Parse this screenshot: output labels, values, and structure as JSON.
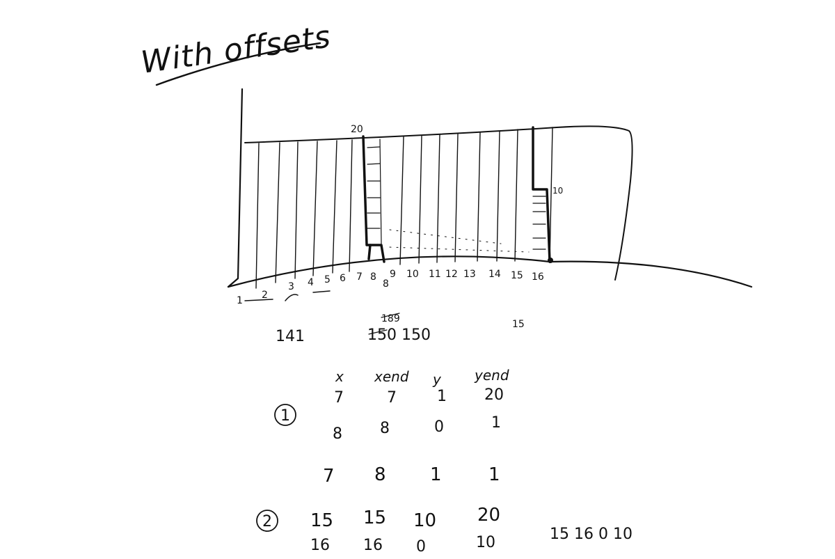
{
  "title": "With offsets",
  "top_marker": "20",
  "right_marker": "10",
  "axis_numbers": [
    "1",
    "2",
    "3",
    "4",
    "5",
    "6",
    "7",
    "8",
    "9",
    "10",
    "11",
    "12",
    "13",
    "14",
    "15",
    "16"
  ],
  "below_axis_8": "8",
  "notes": {
    "left": "141",
    "mid_top": "189",
    "mid_bottom": "150 150",
    "right": "15"
  },
  "table": {
    "headers": [
      "x",
      "xend",
      "y",
      "yend"
    ],
    "group1_label": "1",
    "group2_label": "2",
    "rows": [
      [
        "7",
        "7",
        "1",
        "20"
      ],
      [
        "8",
        "8",
        "0",
        "1"
      ],
      [
        "7",
        "8",
        "1",
        "1"
      ],
      [
        "15",
        "15",
        "10",
        "20"
      ],
      [
        "16",
        "16",
        "0",
        "10"
      ]
    ]
  },
  "side_note": "15 16 0 10"
}
